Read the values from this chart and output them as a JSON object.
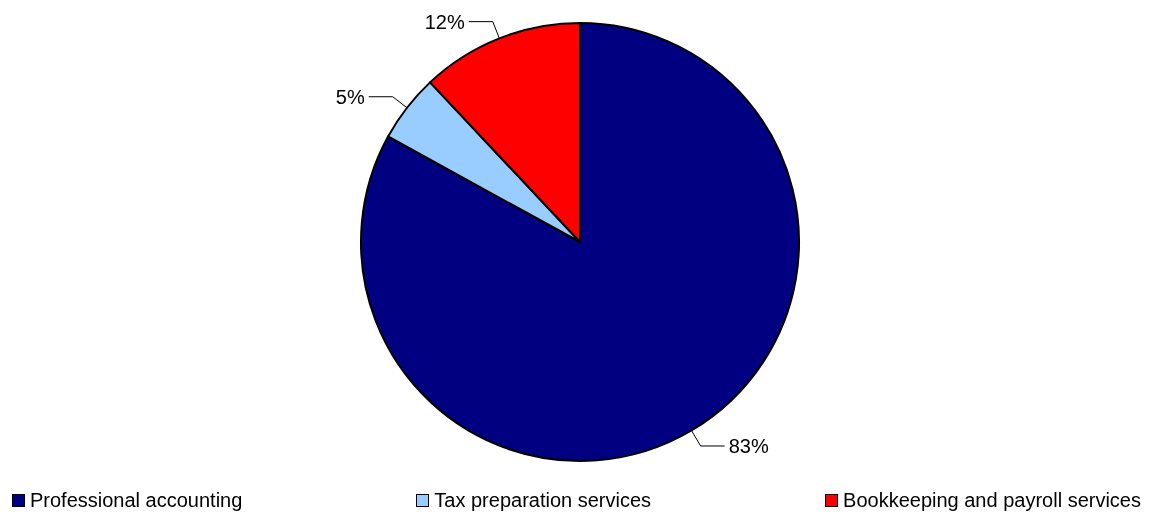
{
  "chart_data": {
    "type": "pie",
    "categories": [
      "Professional accounting",
      "Tax preparation services",
      "Bookkeeping and payroll services"
    ],
    "values": [
      83,
      5,
      12
    ],
    "colors": [
      "#000080",
      "#99ccff",
      "#ff0000"
    ],
    "value_labels": [
      "83%",
      "5%",
      "12%"
    ],
    "legend": "bottom"
  }
}
